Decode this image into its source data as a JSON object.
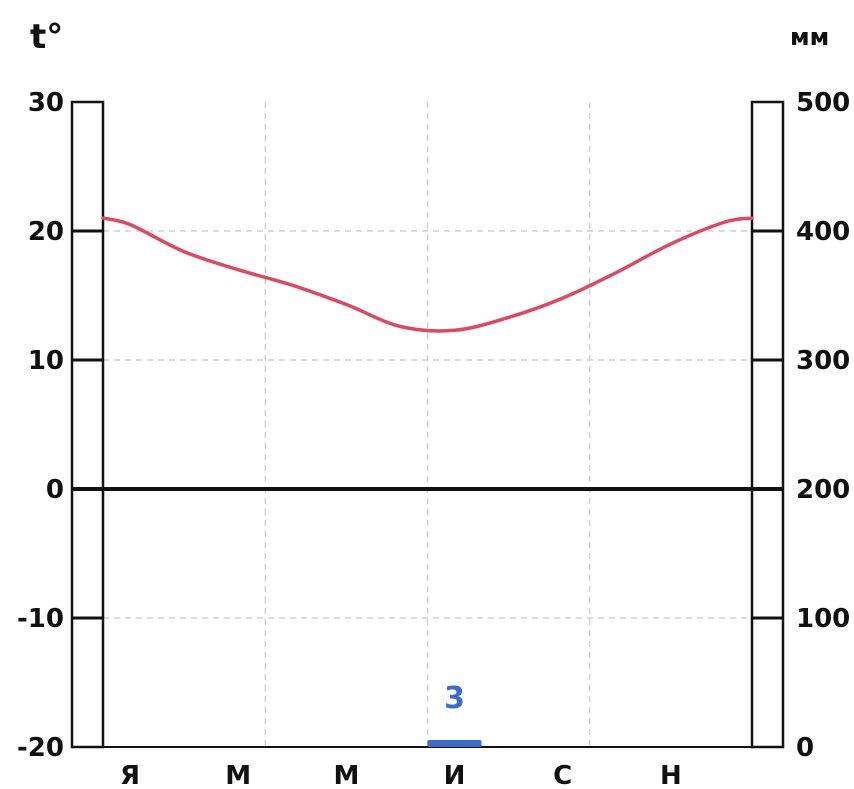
{
  "chart_data": {
    "type": "line",
    "title": "",
    "left_axis": {
      "unit_label": "t°",
      "range": [
        -20,
        30
      ],
      "ticks": [
        30,
        20,
        10,
        0,
        -10,
        -20
      ],
      "tick_labels": [
        "30",
        "20",
        "10",
        "0",
        "-10",
        "-20"
      ]
    },
    "right_axis": {
      "unit_label": "мм",
      "range": [
        0,
        500
      ],
      "ticks": [
        500,
        400,
        300,
        200,
        100,
        0
      ],
      "tick_labels": [
        "500",
        "400",
        "300",
        "200",
        "100",
        "0"
      ]
    },
    "month_labels": [
      "Я",
      "М",
      "М",
      "И",
      "С",
      "Н"
    ],
    "grid": true,
    "temperature": {
      "color": "#d94b63",
      "x": [
        0,
        0.5,
        1.5,
        2.5,
        3.5,
        4.5,
        5.5,
        6.5,
        7.5,
        8.5,
        9.5,
        10.5,
        11.5,
        12
      ],
      "values": [
        21,
        20.5,
        18.4,
        17,
        15.8,
        14.3,
        12.6,
        12.3,
        13.3,
        14.8,
        16.8,
        19,
        20.7,
        21
      ]
    },
    "precipitation": {
      "color": "#3b6cc6",
      "bar_month_index": 6,
      "values_mm": [
        0,
        0,
        0,
        0,
        0,
        0,
        3,
        0,
        0,
        0,
        0,
        0
      ],
      "label": "3"
    }
  }
}
